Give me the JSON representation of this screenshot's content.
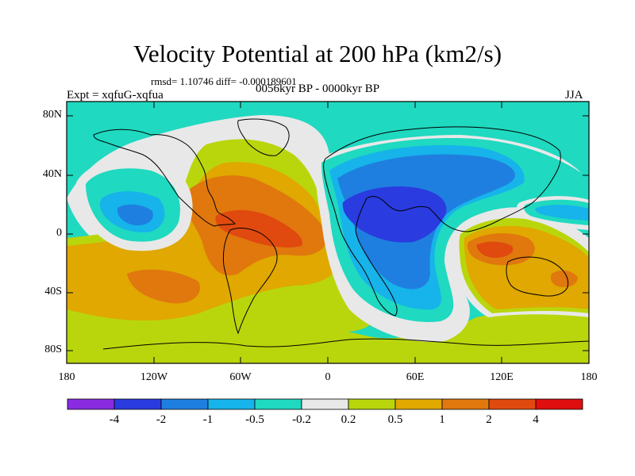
{
  "title": "Velocity Potential at 200 hPa (km2/s)",
  "stats": "rmsd= 1.10746 diff= -0.000189601",
  "experiment": "Expt = xqfuG-xqfua",
  "period": "0056kyr BP - 0000kyr BP",
  "season": "JJA",
  "lat_labels": [
    "80N",
    "40N",
    "0",
    "40S",
    "80S"
  ],
  "lon_labels": [
    "180",
    "120W",
    "60W",
    "0",
    "60E",
    "120E",
    "180"
  ],
  "colorbar": {
    "labels": [
      "-4",
      "-2",
      "-1",
      "-0.5",
      "-0.2",
      "0.2",
      "0.5",
      "1",
      "2",
      "4"
    ],
    "colors": [
      "#8a2be2",
      "#2a3be0",
      "#1f7fe0",
      "#16b4ea",
      "#1fd9c0",
      "#e8e8e8",
      "#b9d60c",
      "#e0a800",
      "#e0780e",
      "#e04a0e",
      "#e00e0e"
    ]
  },
  "palette": {
    "ocean_bg": "#1fd9c0",
    "neutral": "#e8e8e8",
    "neg1": "#16b4ea",
    "neg2": "#1f7fe0",
    "neg3": "#2a3be0",
    "pos1": "#b9d60c",
    "pos2": "#e0a800",
    "pos3": "#e0780e",
    "pos4": "#e04a0e"
  }
}
